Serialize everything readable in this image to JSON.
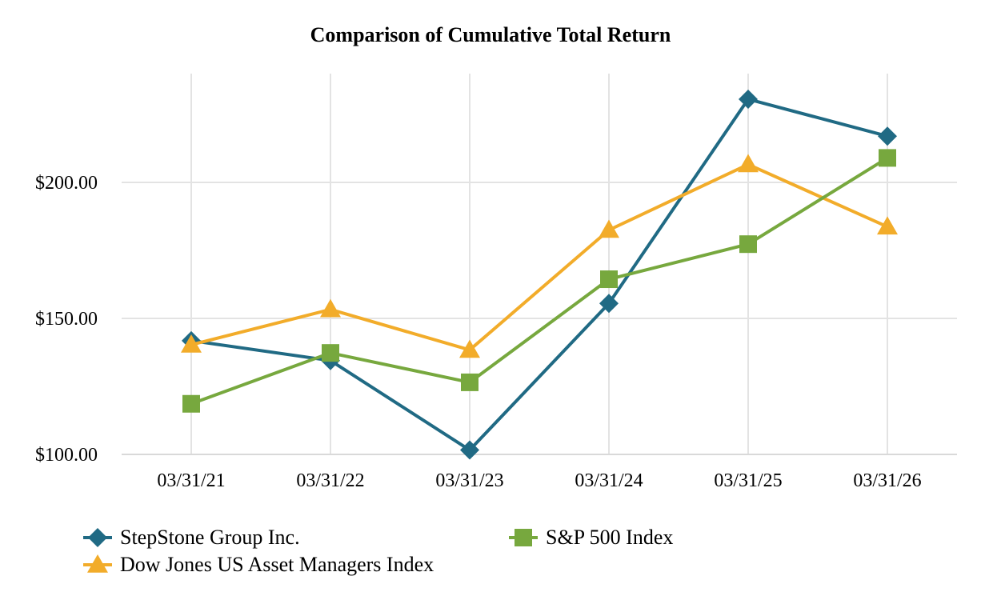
{
  "chart_data": {
    "type": "line",
    "title": "Comparison of Cumulative Total Return",
    "xlabel": "",
    "ylabel": "",
    "categories": [
      "03/31/21",
      "03/31/22",
      "03/31/23",
      "03/31/24",
      "03/31/25",
      "03/31/26"
    ],
    "yticks": [
      100,
      150,
      200
    ],
    "ytick_labels": [
      "$100.00",
      "$150.00",
      "$200.00"
    ],
    "ylim": [
      100,
      240
    ],
    "grid": true,
    "legend_position": "bottom",
    "series": [
      {
        "name": "StepStone Group Inc.",
        "color": "#206a84",
        "marker": "diamond",
        "values": [
          141.8,
          134.5,
          101.6,
          155.5,
          230.6,
          217.0
        ]
      },
      {
        "name": "S&P 500 Index",
        "color": "#77a83e",
        "marker": "square",
        "values": [
          118.6,
          137.3,
          126.5,
          164.4,
          177.3,
          209.0
        ]
      },
      {
        "name": "Dow Jones US Asset Managers Index",
        "color": "#f2ac2a",
        "marker": "triangle",
        "values": [
          140.3,
          153.3,
          138.4,
          182.5,
          206.6,
          183.7
        ]
      }
    ]
  }
}
